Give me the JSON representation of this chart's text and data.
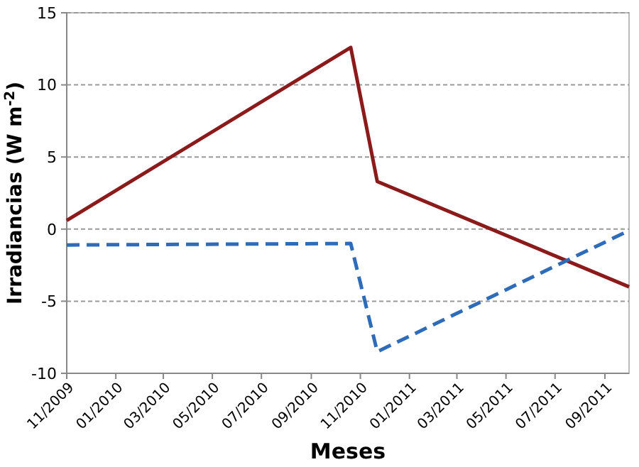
{
  "chart_data": {
    "type": "line",
    "xlabel": "Meses",
    "ylabel": "Irradiancias (W m$^{-2}$)",
    "series": [
      {
        "color": "#8b1a1a",
        "line_style": "solid",
        "x": [
          "2009-11-01",
          "2010-10-20",
          "2010-11-22",
          "2011-10-01"
        ],
        "values": [
          0.6,
          12.6,
          3.3,
          -4.0
        ]
      },
      {
        "color": "#2e6bb8",
        "line_style": "dashed",
        "x": [
          "2009-11-01",
          "2010-10-20",
          "2010-11-22",
          "2011-10-01"
        ],
        "values": [
          -1.1,
          -1.0,
          -8.5,
          -0.1
        ]
      }
    ],
    "xlim": [
      "2009-11-01",
      "2011-10-01"
    ],
    "xticks": [
      {
        "value": "2009-11-01",
        "label": "11/2009"
      },
      {
        "value": "2010-01-01",
        "label": "01/2010"
      },
      {
        "value": "2010-03-01",
        "label": "03/2010"
      },
      {
        "value": "2010-05-01",
        "label": "05/2010"
      },
      {
        "value": "2010-07-01",
        "label": "07/2010"
      },
      {
        "value": "2010-09-01",
        "label": "09/2010"
      },
      {
        "value": "2010-11-01",
        "label": "11/2010"
      },
      {
        "value": "2011-01-01",
        "label": "01/2011"
      },
      {
        "value": "2011-03-01",
        "label": "03/2011"
      },
      {
        "value": "2011-05-01",
        "label": "05/2011"
      },
      {
        "value": "2011-07-01",
        "label": "07/2011"
      },
      {
        "value": "2011-09-01",
        "label": "09/2011"
      }
    ],
    "ylim": [
      -10,
      15
    ],
    "yticks": [
      -10,
      -5,
      0,
      5,
      10,
      15
    ],
    "grid": "y",
    "marker": "none"
  }
}
